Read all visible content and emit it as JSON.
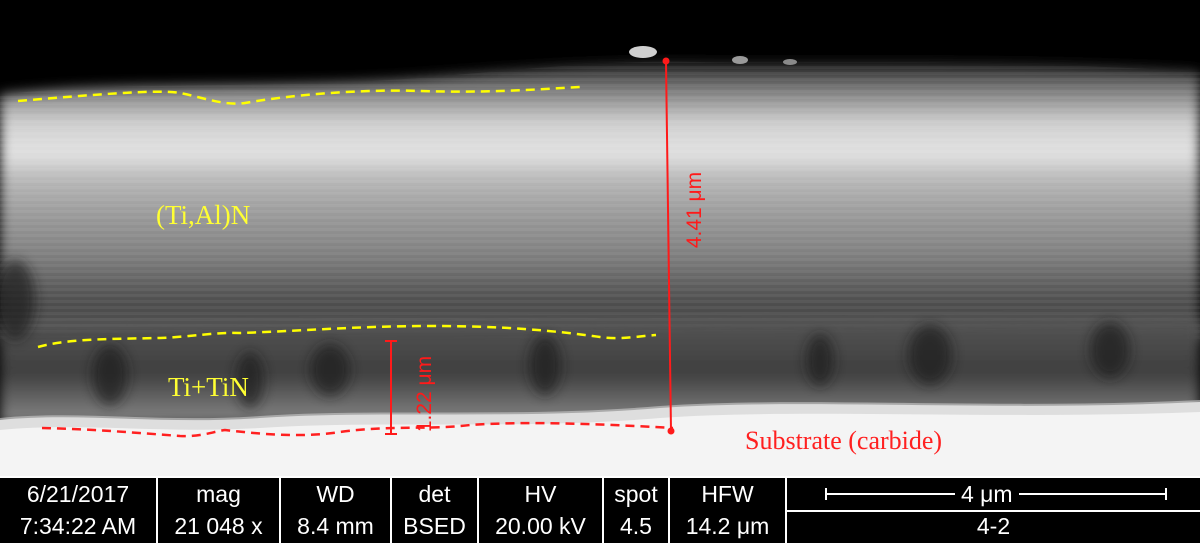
{
  "micrograph": {
    "layers": {
      "coating_label": "(Ti,Al)N",
      "interlayer_label": "Ti+TiN",
      "substrate_label": "Substrate (carbide)"
    },
    "measurements": {
      "total_thickness": "4.41 μm",
      "interlayer_thickness": "1.22 μm"
    },
    "colors": {
      "boundary_dash": "#ffff00",
      "substrate_dash": "#ff2020",
      "measurement": "#ff1a1a",
      "coating_label": "#ffff33",
      "substrate_label": "#ff2020"
    }
  },
  "databar": {
    "date": {
      "header": "6/21/2017",
      "value": "7:34:22 AM"
    },
    "mag": {
      "header": "mag",
      "value": "21 048 x"
    },
    "wd": {
      "header": "WD",
      "value": "8.4 mm"
    },
    "det": {
      "header": "det",
      "value": "BSED"
    },
    "hv": {
      "header": "HV",
      "value": "20.00 kV"
    },
    "spot": {
      "header": "spot",
      "value": "4.5"
    },
    "hfw": {
      "header": "HFW",
      "value": "14.2 μm"
    },
    "scale_bar": {
      "label": "4 μm",
      "caption": "4-2"
    }
  }
}
